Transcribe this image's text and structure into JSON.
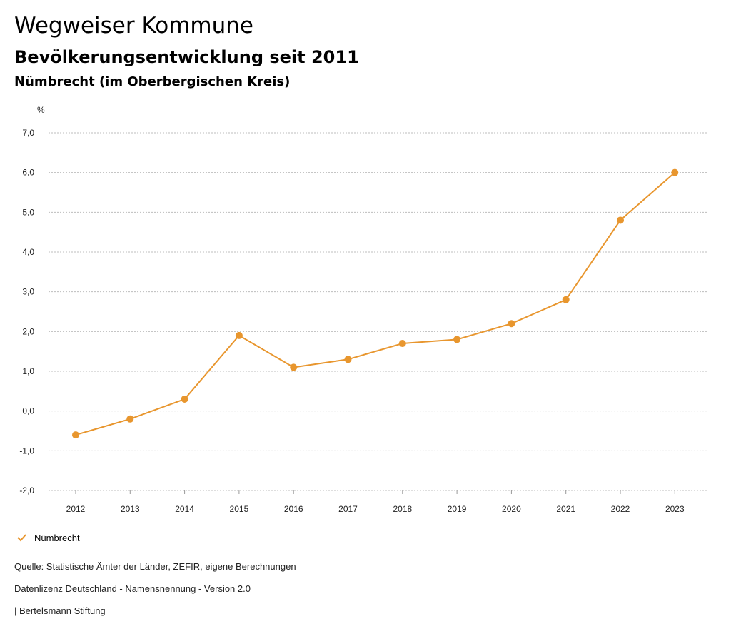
{
  "header": {
    "title": "Wegweiser Kommune",
    "subtitle": "Bevölkerungsentwicklung seit 2011",
    "region": "Nümbrecht (im Oberbergischen Kreis)"
  },
  "legend": {
    "label": "Nümbrecht"
  },
  "footer": {
    "source": "Quelle: Statistische Ämter der Länder, ZEFIR, eigene Berechnungen",
    "license": "Datenlizenz Deutschland - Namensnennung - Version 2.0",
    "publisher": "| Bertelsmann Stiftung"
  },
  "colors": {
    "series": "#e8962e",
    "grid": "#bdbdbd"
  },
  "chart_data": {
    "type": "line",
    "title": "Bevölkerungsentwicklung seit 2011",
    "ylabel": "%",
    "xlabel": "",
    "ylim": [
      -2.0,
      7.0
    ],
    "yticks": [
      "-2,0",
      "-1,0",
      "0,0",
      "1,0",
      "2,0",
      "3,0",
      "4,0",
      "5,0",
      "6,0",
      "7,0"
    ],
    "categories": [
      "2012",
      "2013",
      "2014",
      "2015",
      "2016",
      "2017",
      "2018",
      "2019",
      "2020",
      "2021",
      "2022",
      "2023"
    ],
    "series": [
      {
        "name": "Nümbrecht",
        "values": [
          -0.6,
          -0.2,
          0.3,
          1.9,
          1.1,
          1.3,
          1.7,
          1.8,
          2.2,
          2.8,
          4.8,
          6.0
        ]
      }
    ],
    "grid": true,
    "legend": "bottom-left"
  }
}
